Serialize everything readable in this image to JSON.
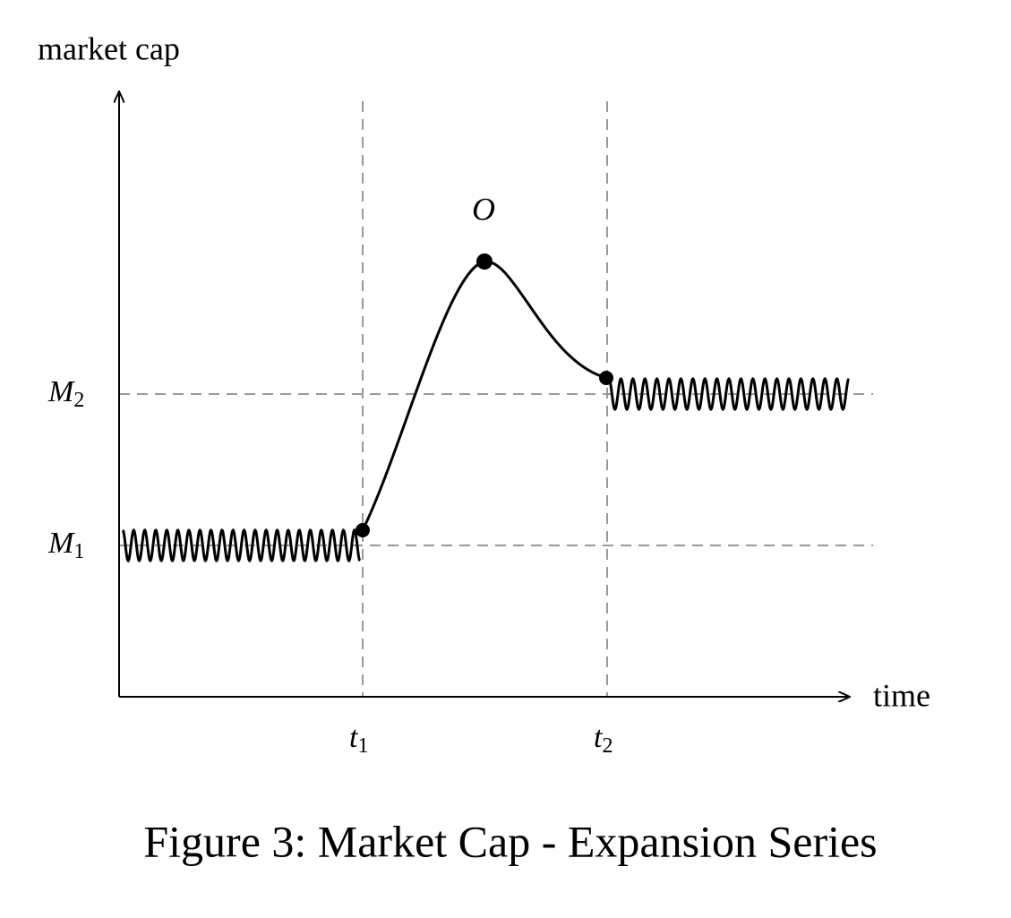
{
  "axes": {
    "y_label": "market cap",
    "x_label": "time"
  },
  "levels": [
    {
      "symbol": "M",
      "subscript": "1"
    },
    {
      "symbol": "M",
      "subscript": "2"
    }
  ],
  "times": [
    {
      "symbol": "t",
      "subscript": "1"
    },
    {
      "symbol": "t",
      "subscript": "2"
    }
  ],
  "peak": {
    "label": "O"
  },
  "caption": "Figure 3: Market Cap - Expansion Series"
}
